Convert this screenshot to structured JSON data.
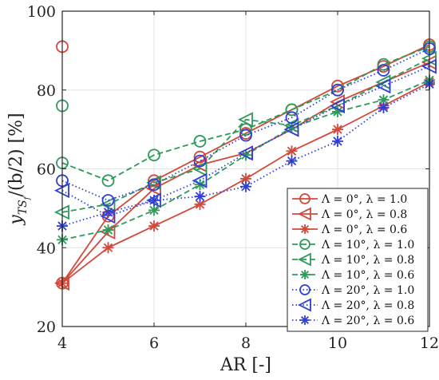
{
  "chart_data": {
    "type": "line",
    "xlabel": "AR [-]",
    "ylabel": "y_{TS_f}/(b/2) [%]",
    "ylabel_parts": {
      "y": "y",
      "sub": "TS",
      "subsub": "f",
      "rest": "/(b/2) [%]"
    },
    "xlim": [
      4,
      12
    ],
    "ylim": [
      20,
      100
    ],
    "xticks": [
      "4",
      "6",
      "8",
      "10",
      "12"
    ],
    "yticks": [
      "20",
      "40",
      "60",
      "80",
      "100"
    ],
    "grid": true,
    "legend_position": "lower-right",
    "x": [
      4,
      5,
      6,
      7,
      8,
      9,
      10,
      11,
      12
    ],
    "series": [
      {
        "name": "Λ = 0°,   λ = 1.0",
        "color": "#d2493a",
        "marker": "circle",
        "dash": "solid",
        "values": [
          31,
          48,
          57,
          63,
          69,
          75,
          81,
          86,
          91.5
        ]
      },
      {
        "name": "Λ = 0°,   λ = 0.8",
        "color": "#d2493a",
        "marker": "triangle-left",
        "dash": "solid",
        "values": [
          31,
          44,
          55,
          61,
          64,
          70,
          77,
          82,
          87
        ]
      },
      {
        "name": "Λ = 0°,   λ = 0.6",
        "color": "#d2493a",
        "marker": "asterisk",
        "dash": "solid",
        "values": [
          31,
          40,
          45.5,
          51,
          57.5,
          64.5,
          70,
          76,
          82
        ]
      },
      {
        "name": "Λ = 10°,   λ = 1.0",
        "color": "#2e9a5a",
        "marker": "circle",
        "dash": "dashed",
        "values": [
          61.5,
          57,
          63.5,
          67,
          70,
          75,
          80,
          86.5,
          91
        ]
      },
      {
        "name": "Λ = 10°,   λ = 0.8",
        "color": "#2e9a5a",
        "marker": "triangle-left",
        "dash": "dashed",
        "values": [
          49,
          51,
          56.5,
          60,
          72.5,
          71,
          76,
          82,
          88
        ]
      },
      {
        "name": "Λ = 10°,   λ = 0.6",
        "color": "#2e9a5a",
        "marker": "asterisk",
        "dash": "dashed",
        "values": [
          42,
          44.5,
          49.5,
          56,
          63.5,
          70.5,
          74.5,
          77.5,
          82.5
        ]
      },
      {
        "name": "Λ = 20°,   λ = 1.0",
        "color": "#2f3fd6",
        "marker": "circle",
        "dash": "dotted",
        "values": [
          57,
          52,
          56,
          62,
          68.5,
          73,
          80,
          85,
          90.5
        ]
      },
      {
        "name": "Λ = 20°,   λ = 0.8",
        "color": "#2f3fd6",
        "marker": "triangle-left",
        "dash": "dotted",
        "values": [
          54.5,
          48,
          52,
          57,
          64,
          70,
          76,
          81,
          86
        ]
      },
      {
        "name": "Λ = 20°,   λ = 0.6",
        "color": "#2f3fd6",
        "marker": "asterisk",
        "dash": "dotted",
        "values": [
          45.5,
          49,
          52,
          53,
          55.5,
          62,
          67,
          75.5,
          81.5
        ]
      }
    ],
    "outliers": [
      {
        "x": 4,
        "y": 91,
        "color": "#d2493a",
        "marker": "circle"
      },
      {
        "x": 4,
        "y": 76,
        "color": "#2e9a5a",
        "marker": "circle"
      }
    ]
  }
}
